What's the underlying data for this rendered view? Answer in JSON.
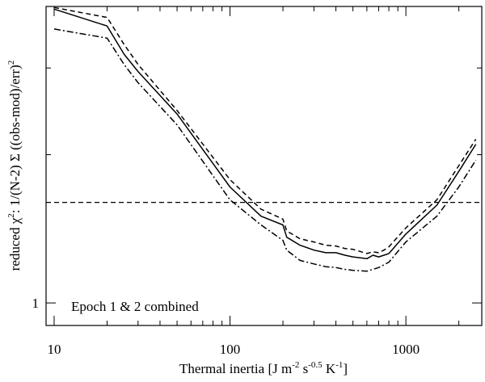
{
  "chart_data": {
    "type": "line",
    "xscale": "log",
    "yscale": "log",
    "xlim": [
      9,
      2700
    ],
    "ylim": [
      0.9,
      4.0
    ],
    "grid": false,
    "legend": "none",
    "xlabel": "Thermal inertia [J m",
    "xlabel_sup1": "-2",
    "xlabel_mid1": " s",
    "xlabel_sup2": "-0.5",
    "xlabel_mid2": " K",
    "xlabel_sup3": "-1",
    "xlabel_end": "]",
    "ylabel": "reduced χ",
    "ylabel_sup1": "2",
    "ylabel_mid": ": 1/(N-2) Σ ((obs-mod)/err)",
    "ylabel_sup2": "2",
    "annotation": "Epoch 1 & 2 combined",
    "x_ticks": [
      {
        "value": 10,
        "label": "10"
      },
      {
        "value": 100,
        "label": "100"
      },
      {
        "value": 1000,
        "label": "1000"
      }
    ],
    "x_minor_ticks": [
      20,
      30,
      40,
      50,
      60,
      70,
      80,
      90,
      200,
      300,
      400,
      500,
      600,
      700,
      800,
      900,
      2000
    ],
    "y_ticks": [
      {
        "value": 1,
        "label": "1"
      }
    ],
    "y_minor_ticks": [
      2,
      3
    ],
    "reference_line": {
      "y": 1.6,
      "style": "dashed",
      "color": "#000000"
    },
    "series": [
      {
        "style": "solid",
        "color": "#000000",
        "x": [
          10,
          20,
          25,
          30,
          50,
          100,
          150,
          200,
          210,
          250,
          300,
          350,
          400,
          450,
          500,
          600,
          650,
          700,
          750,
          800,
          1000,
          1500,
          2000,
          2500
        ],
        "y": [
          3.95,
          3.65,
          3.2,
          2.95,
          2.42,
          1.72,
          1.5,
          1.44,
          1.36,
          1.31,
          1.28,
          1.265,
          1.265,
          1.25,
          1.24,
          1.23,
          1.25,
          1.24,
          1.25,
          1.26,
          1.38,
          1.58,
          1.85,
          2.1
        ]
      },
      {
        "style": "dashed",
        "color": "#000000",
        "x": [
          10,
          20,
          25,
          30,
          50,
          100,
          150,
          200,
          210,
          250,
          300,
          350,
          400,
          450,
          500,
          600,
          650,
          700,
          750,
          800,
          1000,
          1500,
          2000,
          2500
        ],
        "y": [
          3.98,
          3.8,
          3.35,
          3.05,
          2.46,
          1.78,
          1.55,
          1.48,
          1.4,
          1.35,
          1.33,
          1.31,
          1.305,
          1.29,
          1.285,
          1.26,
          1.27,
          1.265,
          1.28,
          1.3,
          1.42,
          1.62,
          1.9,
          2.15
        ]
      },
      {
        "style": "dashdot",
        "color": "#000000",
        "x": [
          10,
          20,
          25,
          30,
          50,
          100,
          150,
          200,
          210,
          250,
          300,
          350,
          400,
          450,
          500,
          600,
          650,
          700,
          750,
          800,
          1000,
          1500,
          2000,
          2500
        ],
        "y": [
          3.6,
          3.45,
          3.05,
          2.8,
          2.3,
          1.62,
          1.44,
          1.34,
          1.28,
          1.22,
          1.2,
          1.185,
          1.18,
          1.17,
          1.165,
          1.16,
          1.17,
          1.18,
          1.195,
          1.21,
          1.33,
          1.5,
          1.72,
          1.95
        ]
      }
    ]
  }
}
